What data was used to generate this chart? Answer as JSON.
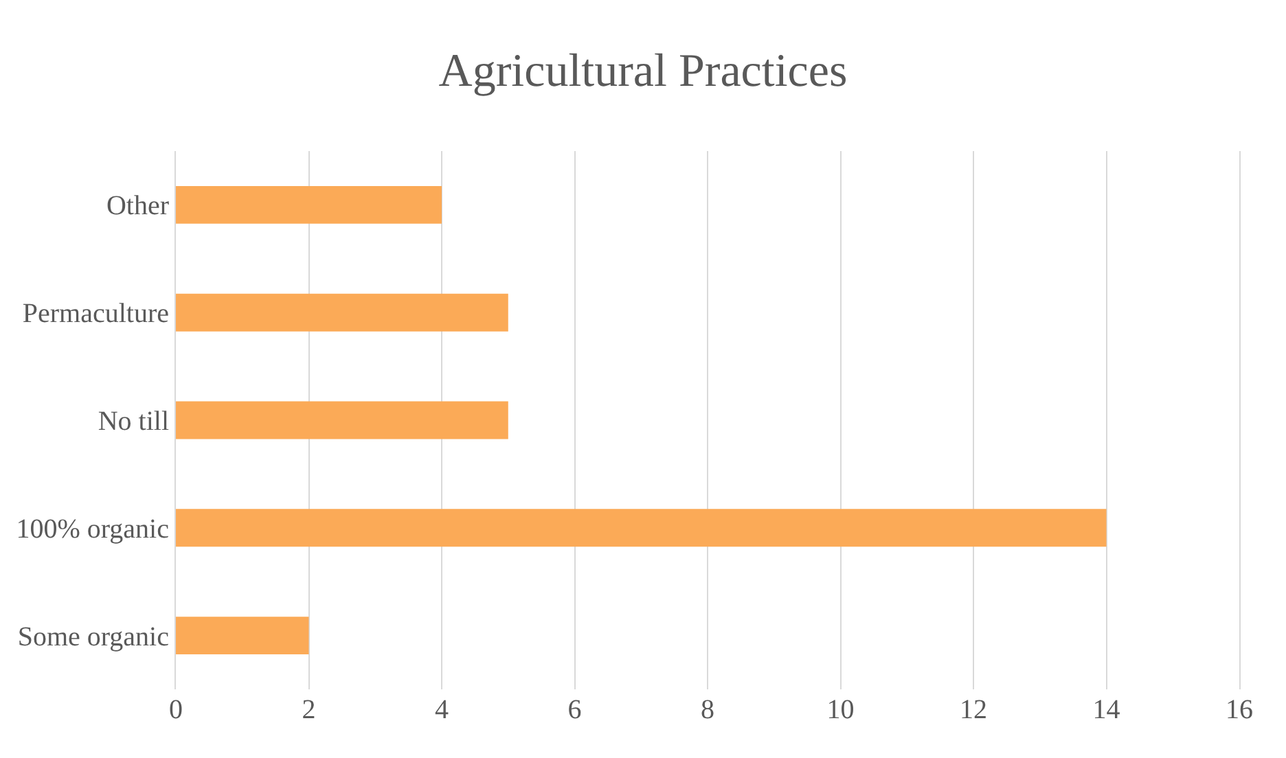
{
  "chart_data": {
    "type": "bar",
    "orientation": "horizontal",
    "title": "Agricultural Practices",
    "categories": [
      "Other",
      "Permaculture",
      "No till",
      "100% organic",
      "Some organic"
    ],
    "values": [
      4,
      5,
      5,
      14,
      2
    ],
    "color": "#fbaa57",
    "xlim": [
      0,
      16
    ],
    "xticks": [
      0,
      2,
      4,
      6,
      8,
      10,
      12,
      14,
      16
    ],
    "grid": "x"
  }
}
